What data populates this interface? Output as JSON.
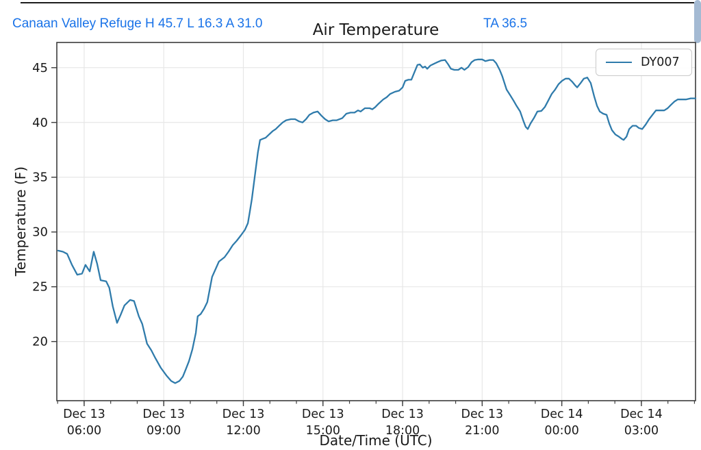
{
  "header": {
    "station_summary": "Canaan Valley Refuge H 45.7 L 16.3 A 31.0",
    "ta_reading": "TA 36.5"
  },
  "colors": {
    "accent_blue": "#1a73e8",
    "line": "#2f7bab",
    "grid": "#e7e7e7",
    "spine": "#3b3b3b",
    "tick_text": "#1a1a1a",
    "scrollbar_thumb": "#a4bad3",
    "top_border": "#1c1c1c",
    "legend_border": "#c9c9c9"
  },
  "chart_data": {
    "type": "line",
    "title": "Air Temperature",
    "xlabel": "Date/Time (UTC)",
    "ylabel": "Temperature (F)",
    "grid": true,
    "legend_position": "upper right",
    "legend": [
      {
        "name": "DY007",
        "color": "#2f7bab"
      }
    ],
    "x_unit": "hours since Dec 13 00:00 UTC",
    "xlim": [
      4.97,
      29.04
    ],
    "ylim": [
      14.6,
      47.3
    ],
    "yticks": [
      20,
      25,
      30,
      35,
      40,
      45
    ],
    "x_minor_interval": 1,
    "xticks": [
      {
        "t": 6,
        "date": "Dec 13",
        "time": "06:00"
      },
      {
        "t": 9,
        "date": "Dec 13",
        "time": "09:00"
      },
      {
        "t": 12,
        "date": "Dec 13",
        "time": "12:00"
      },
      {
        "t": 15,
        "date": "Dec 13",
        "time": "15:00"
      },
      {
        "t": 18,
        "date": "Dec 13",
        "time": "18:00"
      },
      {
        "t": 21,
        "date": "Dec 13",
        "time": "21:00"
      },
      {
        "t": 24,
        "date": "Dec 14",
        "time": "00:00"
      },
      {
        "t": 27,
        "date": "Dec 14",
        "time": "03:00"
      }
    ],
    "series": [
      {
        "name": "DY007",
        "points": [
          [
            5.02,
            28.3
          ],
          [
            5.2,
            28.2
          ],
          [
            5.36,
            28.0
          ],
          [
            5.54,
            27.0
          ],
          [
            5.74,
            26.1
          ],
          [
            5.92,
            26.2
          ],
          [
            6.05,
            27.0
          ],
          [
            6.21,
            26.4
          ],
          [
            6.36,
            28.2
          ],
          [
            6.49,
            27.1
          ],
          [
            6.62,
            25.6
          ],
          [
            6.83,
            25.5
          ],
          [
            6.95,
            24.9
          ],
          [
            7.08,
            23.2
          ],
          [
            7.24,
            21.7
          ],
          [
            7.37,
            22.4
          ],
          [
            7.52,
            23.3
          ],
          [
            7.73,
            23.8
          ],
          [
            7.88,
            23.7
          ],
          [
            8.06,
            22.3
          ],
          [
            8.19,
            21.6
          ],
          [
            8.37,
            19.8
          ],
          [
            8.53,
            19.2
          ],
          [
            8.68,
            18.5
          ],
          [
            8.89,
            17.6
          ],
          [
            9.1,
            16.9
          ],
          [
            9.28,
            16.4
          ],
          [
            9.43,
            16.2
          ],
          [
            9.59,
            16.4
          ],
          [
            9.72,
            16.8
          ],
          [
            9.82,
            17.4
          ],
          [
            9.95,
            18.2
          ],
          [
            10.08,
            19.3
          ],
          [
            10.21,
            20.8
          ],
          [
            10.28,
            22.3
          ],
          [
            10.39,
            22.5
          ],
          [
            10.52,
            23.0
          ],
          [
            10.64,
            23.6
          ],
          [
            10.82,
            25.9
          ],
          [
            10.95,
            26.6
          ],
          [
            11.08,
            27.3
          ],
          [
            11.29,
            27.7
          ],
          [
            11.44,
            28.2
          ],
          [
            11.6,
            28.8
          ],
          [
            11.75,
            29.2
          ],
          [
            11.91,
            29.7
          ],
          [
            12.06,
            30.2
          ],
          [
            12.17,
            30.8
          ],
          [
            12.24,
            31.8
          ],
          [
            12.32,
            33.0
          ],
          [
            12.4,
            34.5
          ],
          [
            12.48,
            36.0
          ],
          [
            12.55,
            37.3
          ],
          [
            12.63,
            38.4
          ],
          [
            12.73,
            38.5
          ],
          [
            12.84,
            38.6
          ],
          [
            12.97,
            38.9
          ],
          [
            13.1,
            39.2
          ],
          [
            13.22,
            39.4
          ],
          [
            13.35,
            39.7
          ],
          [
            13.48,
            40.0
          ],
          [
            13.61,
            40.2
          ],
          [
            13.79,
            40.3
          ],
          [
            13.95,
            40.3
          ],
          [
            14.1,
            40.1
          ],
          [
            14.23,
            40.0
          ],
          [
            14.36,
            40.3
          ],
          [
            14.49,
            40.7
          ],
          [
            14.64,
            40.9
          ],
          [
            14.8,
            41.0
          ],
          [
            14.95,
            40.6
          ],
          [
            15.08,
            40.3
          ],
          [
            15.21,
            40.1
          ],
          [
            15.37,
            40.2
          ],
          [
            15.52,
            40.2
          ],
          [
            15.73,
            40.4
          ],
          [
            15.88,
            40.8
          ],
          [
            16.04,
            40.9
          ],
          [
            16.19,
            40.9
          ],
          [
            16.32,
            41.1
          ],
          [
            16.42,
            41.0
          ],
          [
            16.58,
            41.3
          ],
          [
            16.76,
            41.3
          ],
          [
            16.86,
            41.2
          ],
          [
            16.97,
            41.4
          ],
          [
            17.09,
            41.7
          ],
          [
            17.27,
            42.1
          ],
          [
            17.4,
            42.3
          ],
          [
            17.53,
            42.6
          ],
          [
            17.71,
            42.8
          ],
          [
            17.87,
            42.9
          ],
          [
            18.0,
            43.2
          ],
          [
            18.1,
            43.8
          ],
          [
            18.22,
            43.9
          ],
          [
            18.33,
            43.9
          ],
          [
            18.45,
            44.6
          ],
          [
            18.56,
            45.25
          ],
          [
            18.65,
            45.3
          ],
          [
            18.76,
            45.0
          ],
          [
            18.85,
            45.1
          ],
          [
            18.93,
            44.9
          ],
          [
            19.05,
            45.2
          ],
          [
            19.18,
            45.35
          ],
          [
            19.31,
            45.5
          ],
          [
            19.45,
            45.65
          ],
          [
            19.6,
            45.7
          ],
          [
            19.72,
            45.3
          ],
          [
            19.82,
            44.9
          ],
          [
            19.95,
            44.8
          ],
          [
            20.1,
            44.8
          ],
          [
            20.22,
            45.0
          ],
          [
            20.33,
            44.8
          ],
          [
            20.47,
            45.05
          ],
          [
            20.6,
            45.5
          ],
          [
            20.72,
            45.7
          ],
          [
            20.85,
            45.75
          ],
          [
            21.0,
            45.75
          ],
          [
            21.12,
            45.6
          ],
          [
            21.28,
            45.7
          ],
          [
            21.42,
            45.7
          ],
          [
            21.53,
            45.4
          ],
          [
            21.66,
            44.8
          ],
          [
            21.76,
            44.2
          ],
          [
            21.84,
            43.6
          ],
          [
            21.92,
            43.0
          ],
          [
            22.05,
            42.5
          ],
          [
            22.18,
            42.0
          ],
          [
            22.3,
            41.5
          ],
          [
            22.43,
            41.0
          ],
          [
            22.56,
            40.1
          ],
          [
            22.64,
            39.6
          ],
          [
            22.72,
            39.4
          ],
          [
            22.82,
            39.9
          ],
          [
            22.95,
            40.4
          ],
          [
            23.08,
            41.0
          ],
          [
            23.23,
            41.05
          ],
          [
            23.36,
            41.4
          ],
          [
            23.49,
            42.0
          ],
          [
            23.62,
            42.6
          ],
          [
            23.75,
            43.0
          ],
          [
            23.88,
            43.5
          ],
          [
            24.01,
            43.8
          ],
          [
            24.14,
            44.0
          ],
          [
            24.27,
            44.0
          ],
          [
            24.4,
            43.7
          ],
          [
            24.5,
            43.4
          ],
          [
            24.58,
            43.2
          ],
          [
            24.71,
            43.6
          ],
          [
            24.83,
            44.0
          ],
          [
            24.96,
            44.1
          ],
          [
            25.09,
            43.6
          ],
          [
            25.22,
            42.4
          ],
          [
            25.33,
            41.5
          ],
          [
            25.43,
            41.0
          ],
          [
            25.56,
            40.8
          ],
          [
            25.69,
            40.7
          ],
          [
            25.79,
            39.9
          ],
          [
            25.89,
            39.3
          ],
          [
            26.02,
            38.9
          ],
          [
            26.15,
            38.7
          ],
          [
            26.26,
            38.5
          ],
          [
            26.33,
            38.4
          ],
          [
            26.44,
            38.7
          ],
          [
            26.54,
            39.4
          ],
          [
            26.67,
            39.7
          ],
          [
            26.8,
            39.7
          ],
          [
            26.9,
            39.5
          ],
          [
            27.03,
            39.4
          ],
          [
            27.16,
            39.8
          ],
          [
            27.29,
            40.3
          ],
          [
            27.42,
            40.7
          ],
          [
            27.55,
            41.1
          ],
          [
            27.7,
            41.1
          ],
          [
            27.86,
            41.1
          ],
          [
            27.99,
            41.3
          ],
          [
            28.11,
            41.6
          ],
          [
            28.24,
            41.9
          ],
          [
            28.37,
            42.1
          ],
          [
            28.53,
            42.1
          ],
          [
            28.68,
            42.1
          ],
          [
            28.86,
            42.2
          ],
          [
            29.04,
            42.2
          ]
        ]
      }
    ]
  }
}
